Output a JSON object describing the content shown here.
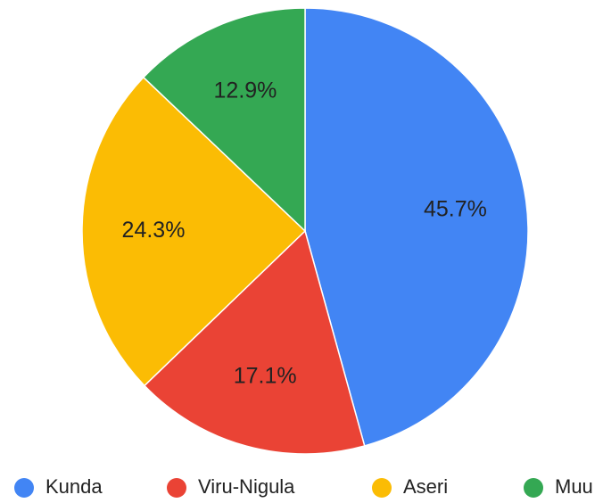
{
  "chart_data": {
    "type": "pie",
    "categories": [
      "Kunda",
      "Viru-Nigula",
      "Aseri",
      "Muu"
    ],
    "values": [
      45.7,
      17.1,
      24.3,
      12.9
    ],
    "value_labels": [
      "45.7%",
      "17.1%",
      "24.3%",
      "12.9%"
    ],
    "colors": [
      "#4285f4",
      "#ea4335",
      "#fbbc04",
      "#34a853"
    ],
    "legend": "bottom"
  }
}
